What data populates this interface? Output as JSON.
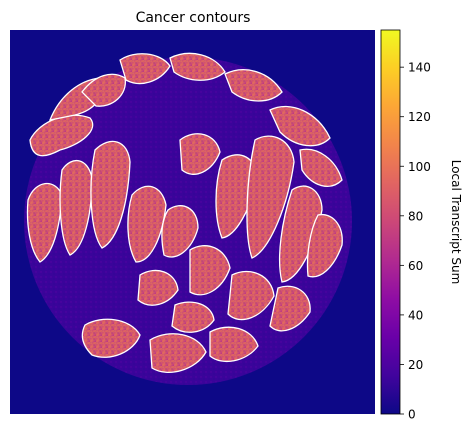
{
  "chart_data": {
    "type": "heatmap",
    "title": "Cancer contours",
    "colorbar": {
      "label": "Local Transcript Sum",
      "range": [
        0,
        155
      ],
      "ticks": [
        0,
        20,
        40,
        60,
        80,
        100,
        120,
        140
      ],
      "tick_labels": [
        "0",
        "20",
        "40",
        "60",
        "80",
        "100",
        "120",
        "140"
      ],
      "colormap": "plasma"
    },
    "axes_visible": false,
    "background_value": 5,
    "tissue_value_range": [
      10,
      35
    ],
    "contour_color": "#ffffff",
    "contour_fill_value_range": [
      60,
      130
    ]
  },
  "colors": {
    "plasma_low": "#0d0887",
    "plasma_mid": "#cc4778",
    "plasma_high": "#f0f921",
    "contour": "#ffffff"
  }
}
